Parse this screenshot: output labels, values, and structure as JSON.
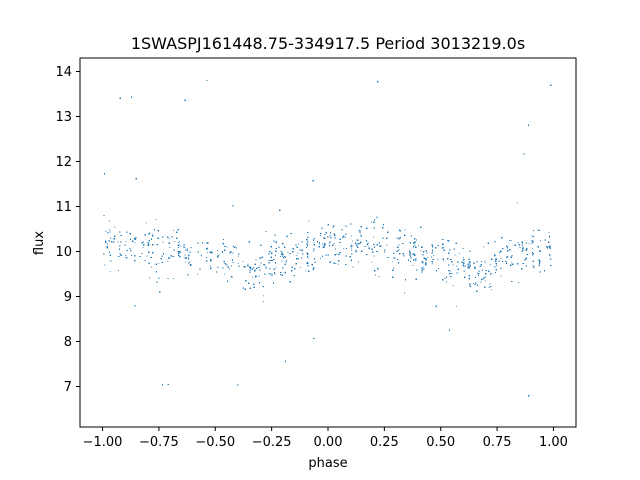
{
  "chart_data": {
    "type": "scatter",
    "title": "1SWASPJ161448.75-334917.5 Period 3013219.0s",
    "xlabel": "phase",
    "ylabel": "flux",
    "xlim": [
      -1.1,
      1.1
    ],
    "ylim": [
      6.1,
      14.3
    ],
    "xticks": [
      -1.0,
      -0.75,
      -0.5,
      -0.25,
      0.0,
      0.25,
      0.5,
      0.75,
      1.0
    ],
    "xtick_labels": [
      "−1.00",
      "−0.75",
      "−0.50",
      "−0.25",
      "0.00",
      "0.25",
      "0.50",
      "0.75",
      "1.00"
    ],
    "yticks": [
      7,
      8,
      9,
      10,
      11,
      12,
      13,
      14
    ],
    "ytick_labels": [
      "7",
      "8",
      "9",
      "10",
      "11",
      "12",
      "13",
      "14"
    ],
    "grid": false,
    "legend": "none",
    "marker_color": "#1f77b4",
    "series": [
      {
        "x_range": [
          -1.0,
          1.0
        ],
        "median_flux": 10.0,
        "typical_flux_range": [
          8.0,
          12.0
        ],
        "outlier_flux_range": [
          6.5,
          13.9
        ],
        "shape": "folded light curve, two identical cycles in phase, vertical clusters of points, dips near phase -0.33 and 0.67"
      }
    ]
  }
}
